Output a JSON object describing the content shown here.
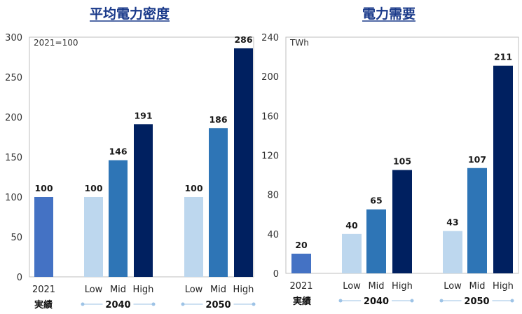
{
  "colors": {
    "actual": "#4472c4",
    "low": "#bdd7ee",
    "mid": "#2e75b6",
    "high": "#002060",
    "title": "#1a3a8a",
    "group_line": "#9dc3e6"
  },
  "chart_data": [
    {
      "type": "bar",
      "title": "平均電力密度",
      "unit_note": "2021=100",
      "ylim": [
        0,
        300
      ],
      "yticks": [
        0,
        50,
        100,
        150,
        200,
        250,
        300
      ],
      "bars": [
        {
          "group": "実績",
          "category": "2021",
          "value": 100,
          "label": "100",
          "color_key": "actual"
        },
        {
          "group": "2040",
          "category": "Low",
          "value": 100,
          "label": "100",
          "color_key": "low"
        },
        {
          "group": "2040",
          "category": "Mid",
          "value": 146,
          "label": "146",
          "color_key": "mid"
        },
        {
          "group": "2040",
          "category": "High",
          "value": 191,
          "label": "191",
          "color_key": "high"
        },
        {
          "group": "2050",
          "category": "Low",
          "value": 100,
          "label": "100",
          "color_key": "low"
        },
        {
          "group": "2050",
          "category": "Mid",
          "value": 186,
          "label": "186",
          "color_key": "mid"
        },
        {
          "group": "2050",
          "category": "High",
          "value": 286,
          "label": "286",
          "color_key": "high"
        }
      ],
      "groups": [
        "実績",
        "2040",
        "2050"
      ]
    },
    {
      "type": "bar",
      "title": "電力需要",
      "unit_note": "TWh",
      "ylim": [
        0,
        240
      ],
      "yticks": [
        0,
        40,
        80,
        120,
        160,
        200,
        240
      ],
      "bars": [
        {
          "group": "実績",
          "category": "2021",
          "value": 20,
          "label": "20",
          "color_key": "actual"
        },
        {
          "group": "2040",
          "category": "Low",
          "value": 40,
          "label": "40",
          "color_key": "low"
        },
        {
          "group": "2040",
          "category": "Mid",
          "value": 65,
          "label": "65",
          "color_key": "mid"
        },
        {
          "group": "2040",
          "category": "High",
          "value": 105,
          "label": "105",
          "color_key": "high"
        },
        {
          "group": "2050",
          "category": "Low",
          "value": 43,
          "label": "43",
          "color_key": "low"
        },
        {
          "group": "2050",
          "category": "Mid",
          "value": 107,
          "label": "107",
          "color_key": "mid"
        },
        {
          "group": "2050",
          "category": "High",
          "value": 211,
          "label": "211",
          "color_key": "high"
        }
      ],
      "groups": [
        "実績",
        "2040",
        "2050"
      ]
    }
  ]
}
